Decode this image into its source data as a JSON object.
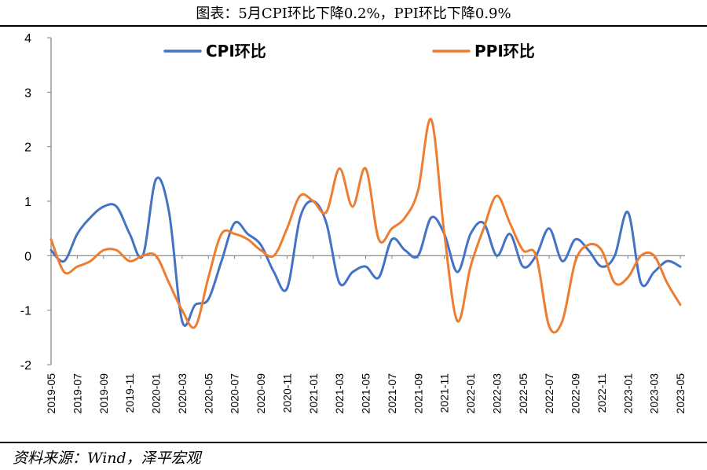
{
  "title": "图表：5月CPI环比下降0.2%，PPI环比下降0.9%",
  "source": "资料来源：Wind，泽平宏观",
  "chart_data": {
    "type": "line",
    "title": "图表：5月CPI环比下降0.2%，PPI环比下降0.9%",
    "xlabel": "",
    "ylabel": "",
    "ylim": [
      -2,
      4
    ],
    "yticks": [
      -2,
      -1,
      0,
      1,
      2,
      3,
      4
    ],
    "grid": false,
    "legend_position": "top",
    "x": [
      "2019-05",
      "2019-06",
      "2019-07",
      "2019-08",
      "2019-09",
      "2019-10",
      "2019-11",
      "2019-12",
      "2020-01",
      "2020-02",
      "2020-03",
      "2020-04",
      "2020-05",
      "2020-06",
      "2020-07",
      "2020-08",
      "2020-09",
      "2020-10",
      "2020-11",
      "2020-12",
      "2021-01",
      "2021-02",
      "2021-03",
      "2021-04",
      "2021-05",
      "2021-06",
      "2021-07",
      "2021-08",
      "2021-09",
      "2021-10",
      "2021-11",
      "2021-12",
      "2022-01",
      "2022-02",
      "2022-03",
      "2022-04",
      "2022-05",
      "2022-06",
      "2022-07",
      "2022-08",
      "2022-09",
      "2022-10",
      "2022-11",
      "2022-12",
      "2023-01",
      "2023-02",
      "2023-03",
      "2023-04",
      "2023-05"
    ],
    "xtick_labels": [
      "2019-05",
      "2019-07",
      "2019-09",
      "2019-11",
      "2020-01",
      "2020-03",
      "2020-05",
      "2020-07",
      "2020-09",
      "2020-11",
      "2021-01",
      "2021-03",
      "2021-05",
      "2021-07",
      "2021-09",
      "2021-11",
      "2022-01",
      "2022-03",
      "2022-05",
      "2022-07",
      "2022-09",
      "2022-11",
      "2023-01",
      "2023-03",
      "2023-05"
    ],
    "series": [
      {
        "name": "CPI环比",
        "color": "#4472C4",
        "values": [
          0.1,
          -0.1,
          0.4,
          0.7,
          0.9,
          0.9,
          0.4,
          0.0,
          1.4,
          0.8,
          -1.2,
          -0.9,
          -0.8,
          -0.1,
          0.6,
          0.4,
          0.2,
          -0.3,
          -0.6,
          0.7,
          1.0,
          0.6,
          -0.5,
          -0.3,
          -0.2,
          -0.4,
          0.3,
          0.1,
          0.0,
          0.7,
          0.4,
          -0.3,
          0.4,
          0.6,
          0.0,
          0.4,
          -0.2,
          0.0,
          0.5,
          -0.1,
          0.3,
          0.1,
          -0.2,
          0.0,
          0.8,
          -0.5,
          -0.3,
          -0.1,
          -0.2
        ]
      },
      {
        "name": "PPI环比",
        "color": "#ED7D31",
        "values": [
          0.3,
          -0.3,
          -0.2,
          -0.1,
          0.1,
          0.1,
          -0.1,
          0.0,
          0.0,
          -0.5,
          -1.0,
          -1.3,
          -0.4,
          0.4,
          0.4,
          0.3,
          0.1,
          0.0,
          0.5,
          1.1,
          1.0,
          0.8,
          1.6,
          0.9,
          1.6,
          0.3,
          0.5,
          0.7,
          1.2,
          2.5,
          0.4,
          -1.2,
          -0.2,
          0.5,
          1.1,
          0.6,
          0.1,
          0.0,
          -1.3,
          -1.2,
          -0.1,
          0.2,
          0.1,
          -0.5,
          -0.4,
          0.0,
          0.0,
          -0.5,
          -0.9
        ]
      }
    ]
  }
}
